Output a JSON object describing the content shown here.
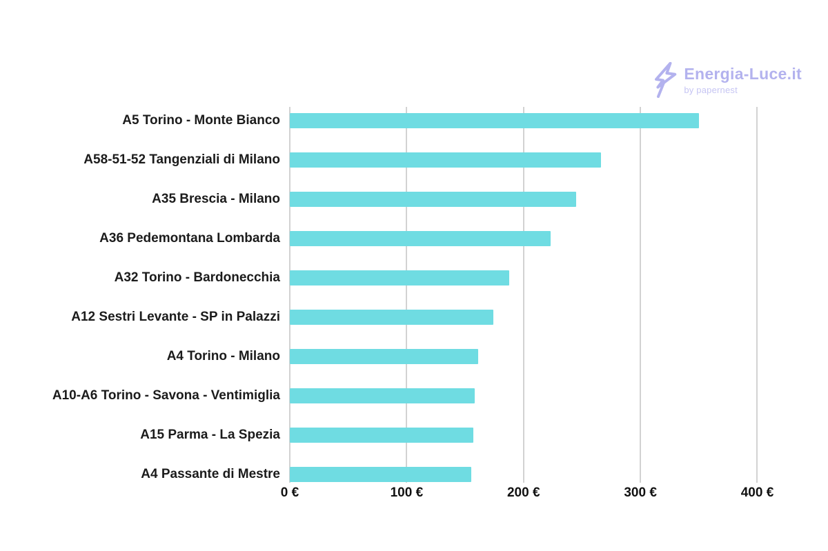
{
  "branding": {
    "title": "Energia-Luce.it",
    "byline": "by papernest",
    "brand_color": "#b3b2ee",
    "byline_color": "#c6c5f3",
    "icon": "lightning-bolt-icon"
  },
  "chart_data": {
    "type": "bar",
    "orientation": "horizontal",
    "title": "",
    "xlabel": "",
    "ylabel": "",
    "unit": "€",
    "categories": [
      "A5 Torino - Monte Bianco",
      "A58-51-52 Tangenziali di Milano",
      "A35 Brescia - Milano",
      "A36 Pedemontana Lombarda",
      "A32 Torino - Bardonecchia",
      "A12 Sestri Levante - SP in Palazzi",
      "A4 Torino - Milano",
      "A10-A6 Torino - Savona - Ventimiglia",
      "A15 Parma - La Spezia",
      "A4 Passante di Mestre"
    ],
    "values": [
      350,
      266,
      245,
      223,
      188,
      174,
      161,
      158,
      157,
      155
    ],
    "x_ticks": {
      "values": [
        0,
        100,
        200,
        300,
        400
      ],
      "labels": [
        "0 €",
        "100 €",
        "200 €",
        "300 €",
        "400 €"
      ]
    },
    "xlim": [
      0,
      431
    ],
    "grid": true,
    "legend": "none",
    "bar_color": "#6fdce2",
    "grid_color": "#d2d2d2",
    "label_color": "#1b1b1b"
  }
}
